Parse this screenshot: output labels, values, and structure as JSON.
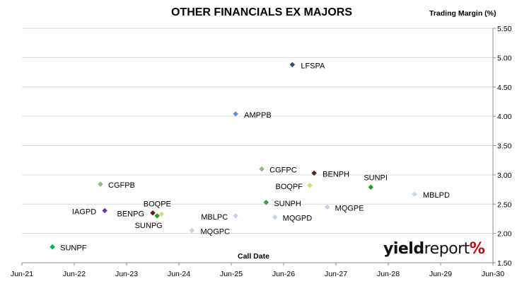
{
  "chart_data": {
    "type": "scatter",
    "title": "OTHER FINANCIALS EX MAJORS",
    "xlabel": "Call Date",
    "ylabel": "Trading Margin (%)",
    "x_ticks": [
      "Jun-21",
      "Jun-22",
      "Jun-23",
      "Jun-24",
      "Jun-25",
      "Jun-26",
      "Jun-27",
      "Jun-28",
      "Jun-29",
      "Jun-30"
    ],
    "y_ticks": [
      "1.50",
      "2.00",
      "2.50",
      "3.00",
      "3.50",
      "4.00",
      "4.50",
      "5.00",
      "5.50"
    ],
    "ylim": [
      1.5,
      5.5
    ],
    "xlim": [
      "2021-06",
      "2030-06"
    ],
    "grid": "horizontal",
    "points": [
      {
        "label": "LFSPA",
        "x": "2026-08",
        "y": 4.88,
        "color": "#1f4e79"
      },
      {
        "label": "AMPPB",
        "x": "2025-07",
        "y": 4.04,
        "color": "#5b8fd4"
      },
      {
        "label": "CGFPC",
        "x": "2026-01",
        "y": 3.1,
        "color": "#8fbc7f"
      },
      {
        "label": "BENPH",
        "x": "2027-01",
        "y": 3.03,
        "color": "#5c1f1f"
      },
      {
        "label": "SUNPI",
        "x": "2028-02",
        "y": 2.79,
        "color": "#22a022"
      },
      {
        "label": "CGFPB",
        "x": "2022-12",
        "y": 2.84,
        "color": "#8fbc7f"
      },
      {
        "label": "BOQPF",
        "x": "2026-12",
        "y": 2.82,
        "color": "#d7d77a"
      },
      {
        "label": "MBLPD",
        "x": "2028-12",
        "y": 2.67,
        "color": "#c2d4ec"
      },
      {
        "label": "SUNPH",
        "x": "2026-02",
        "y": 2.53,
        "color": "#3d9a3d"
      },
      {
        "label": "MQGPE",
        "x": "2027-04",
        "y": 2.45,
        "color": "#c2d4ec"
      },
      {
        "label": "IAGPD",
        "x": "2023-01",
        "y": 2.39,
        "color": "#7030a0"
      },
      {
        "label": "BOQPE",
        "x": "2024-02",
        "y": 2.33,
        "color": "#d7d77a"
      },
      {
        "label": "BENPG",
        "x": "2023-12",
        "y": 2.35,
        "color": "#5c1f1f"
      },
      {
        "label": "MBLPC",
        "x": "2025-07",
        "y": 2.3,
        "color": "#c2d4ec"
      },
      {
        "label": "MQGPD",
        "x": "2026-04",
        "y": 2.28,
        "color": "#c2d4ec"
      },
      {
        "label": "SUNPG",
        "x": "2024-01",
        "y": 2.3,
        "color": "#22a022"
      },
      {
        "label": "MQGPC",
        "x": "2024-09",
        "y": 2.05,
        "color": "#c2d4ec"
      },
      {
        "label": "SUNPF",
        "x": "2022-01",
        "y": 1.77,
        "color": "#00b050"
      }
    ]
  },
  "logo": {
    "part1": "yield",
    "part2": "report",
    "mark": "%"
  }
}
